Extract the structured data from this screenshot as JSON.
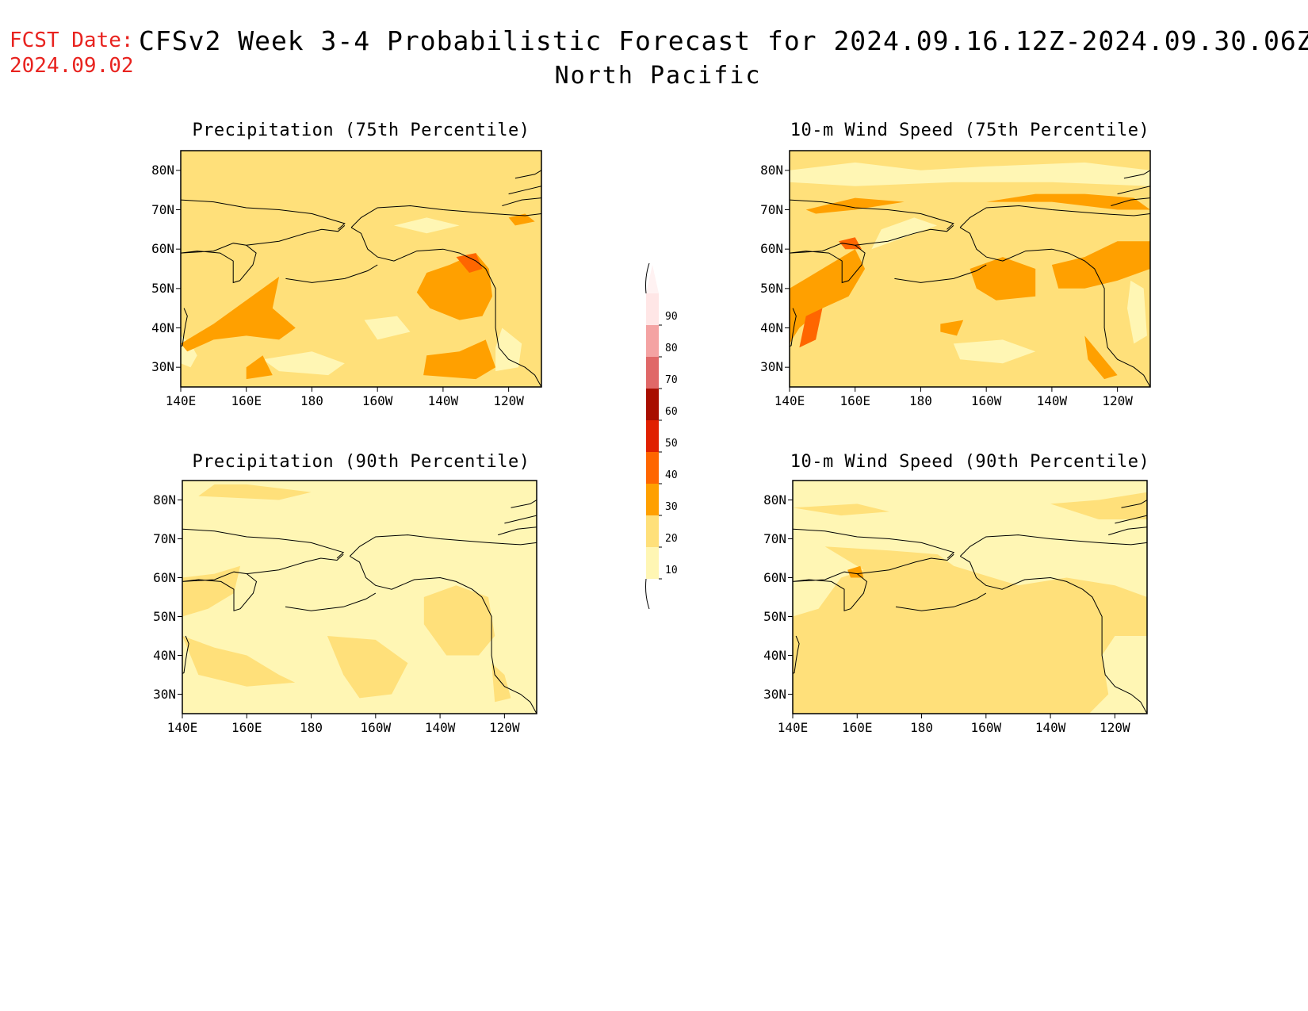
{
  "header": {
    "fcst_label": "FCST Date:",
    "fcst_date": "2024.09.02",
    "title": "CFSv2 Week 3-4 Probabilistic Forecast for 2024.09.16.12Z-2024.09.30.06Z",
    "region": "North Pacific"
  },
  "chart_data": {
    "type": "heatmap",
    "panels": [
      {
        "id": "precip75",
        "title": "Precipitation (75th Percentile)"
      },
      {
        "id": "wind75",
        "title": "10-m Wind Speed (75th Percentile)"
      },
      {
        "id": "precip90",
        "title": "Precipitation (90th Percentile)"
      },
      {
        "id": "wind90",
        "title": "10-m Wind Speed (90th Percentile)"
      }
    ],
    "lat_ticks": [
      "80N",
      "70N",
      "60N",
      "50N",
      "40N",
      "30N"
    ],
    "lon_ticks": [
      "140E",
      "160E",
      "180",
      "160W",
      "140W",
      "120W"
    ],
    "lat_range": [
      25,
      85
    ],
    "lon_range": [
      140,
      250
    ],
    "legend": {
      "labels": [
        "90",
        "80",
        "70",
        "60",
        "50",
        "40",
        "30",
        "20",
        "10"
      ],
      "colors": [
        "#ffe6e6",
        "#f4a3a3",
        "#e06868",
        "#a80e00",
        "#e02000",
        "#ff6600",
        "#ffa000",
        "#ffe07a",
        "#fff6b4"
      ]
    }
  }
}
